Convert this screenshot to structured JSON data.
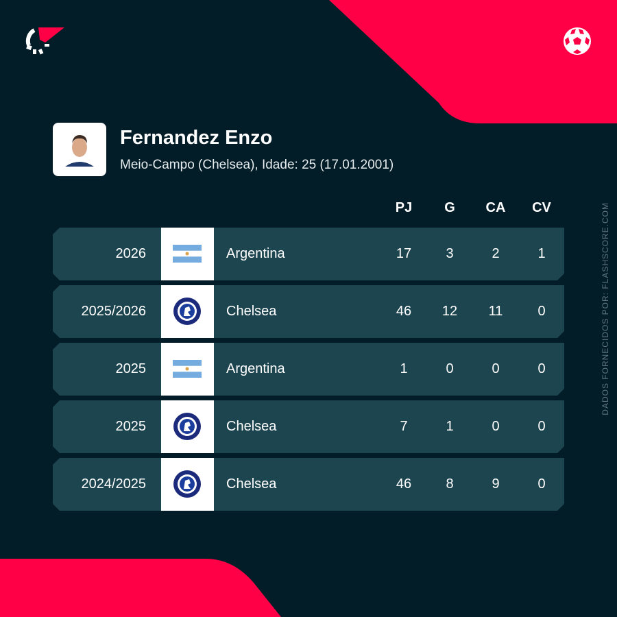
{
  "brand": {
    "accent": "#ff0046",
    "background": "#021d28",
    "row": "#1d4550"
  },
  "player": {
    "name": "Fernandez Enzo",
    "subtitle": "Meio-Campo (Chelsea), Idade: 25 (17.01.2001)"
  },
  "columns": [
    "PJ",
    "G",
    "CA",
    "CV"
  ],
  "rows": [
    {
      "season": "2026",
      "team": "Argentina",
      "icon": "argentina-flag",
      "stats": [
        "17",
        "3",
        "2",
        "1"
      ]
    },
    {
      "season": "2025/2026",
      "team": "Chelsea",
      "icon": "chelsea-crest",
      "stats": [
        "46",
        "12",
        "11",
        "0"
      ]
    },
    {
      "season": "2025",
      "team": "Argentina",
      "icon": "argentina-flag",
      "stats": [
        "1",
        "0",
        "0",
        "0"
      ]
    },
    {
      "season": "2025",
      "team": "Chelsea",
      "icon": "chelsea-crest",
      "stats": [
        "7",
        "1",
        "0",
        "0"
      ]
    },
    {
      "season": "2024/2025",
      "team": "Chelsea",
      "icon": "chelsea-crest",
      "stats": [
        "46",
        "8",
        "9",
        "0"
      ]
    }
  ],
  "credit": "DADOS FORNECIDOS POR: FLASHSCORE.COM"
}
